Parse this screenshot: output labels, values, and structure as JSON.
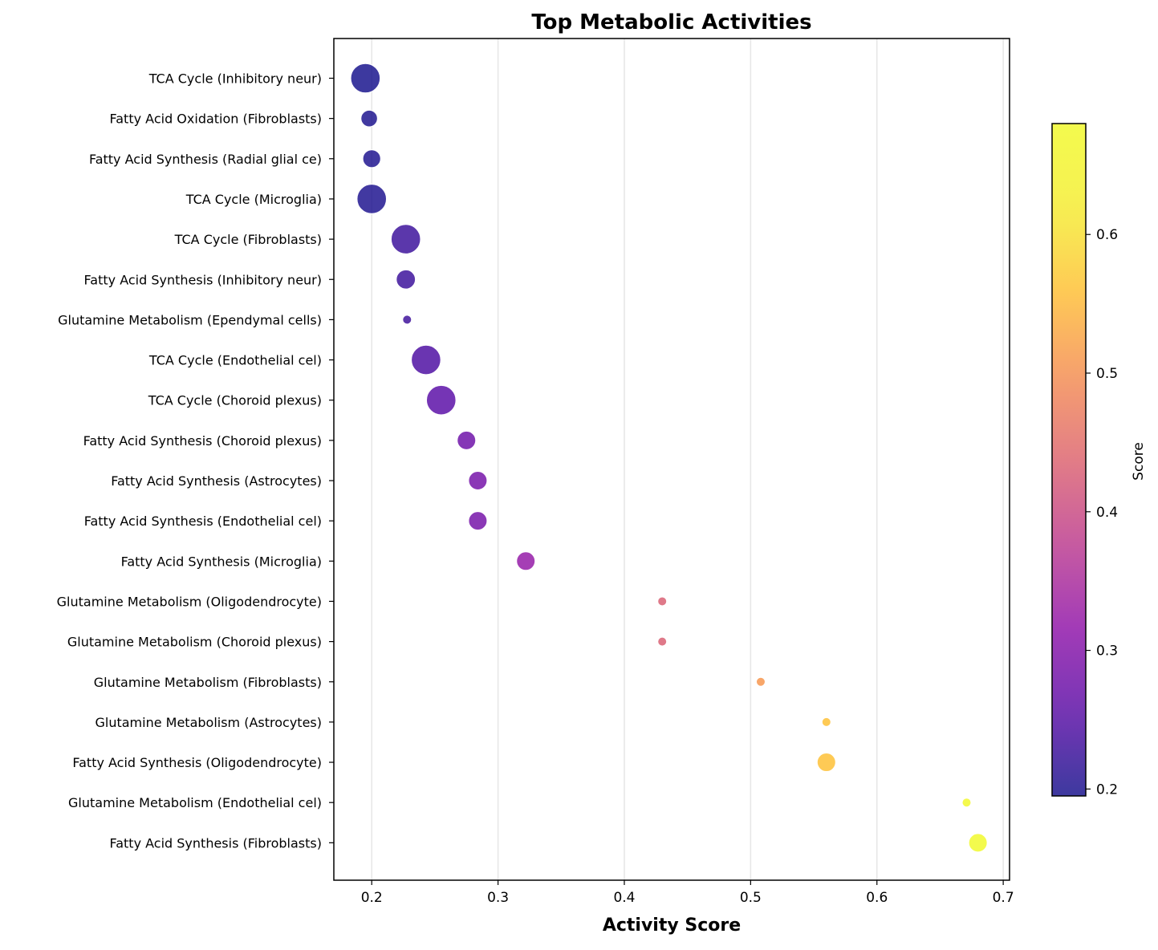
{
  "chart_data": {
    "type": "scatter",
    "title": "Top Metabolic Activities",
    "xlabel": "Activity Score",
    "ylabel": "",
    "xlim": [
      0.17,
      0.705
    ],
    "x_ticks": [
      0.2,
      0.3,
      0.4,
      0.5,
      0.6,
      0.7
    ],
    "x_tick_labels": [
      "0.2",
      "0.3",
      "0.4",
      "0.5",
      "0.6",
      "0.7"
    ],
    "grid": "vertical",
    "colormap": "plasma",
    "colorbar": {
      "label": "Score",
      "range": [
        0.195,
        0.68
      ],
      "ticks": [
        0.2,
        0.3,
        0.4,
        0.5,
        0.6
      ],
      "tick_labels": [
        "0.2",
        "0.3",
        "0.4",
        "0.5",
        "0.6"
      ]
    },
    "points": [
      {
        "label": "TCA Cycle (Inhibitory neur)",
        "x": 0.195,
        "size": 4.6
      },
      {
        "label": "Fatty Acid Oxidation (Fibroblasts)",
        "x": 0.198,
        "size": 2.6
      },
      {
        "label": "Fatty Acid Synthesis (Radial glial ce)",
        "x": 0.2,
        "size": 2.8
      },
      {
        "label": "TCA Cycle (Microglia)",
        "x": 0.2,
        "size": 4.6
      },
      {
        "label": "TCA Cycle (Fibroblasts)",
        "x": 0.227,
        "size": 4.6
      },
      {
        "label": "Fatty Acid Synthesis (Inhibitory neur)",
        "x": 0.227,
        "size": 3.0
      },
      {
        "label": "Glutamine Metabolism (Ependymal cells)",
        "x": 0.228,
        "size": 1.4
      },
      {
        "label": "TCA Cycle (Endothelial cel)",
        "x": 0.243,
        "size": 4.6
      },
      {
        "label": "TCA Cycle (Choroid plexus)",
        "x": 0.255,
        "size": 4.6
      },
      {
        "label": "Fatty Acid Synthesis (Choroid plexus)",
        "x": 0.275,
        "size": 2.9
      },
      {
        "label": "Fatty Acid Synthesis (Astrocytes)",
        "x": 0.284,
        "size": 2.9
      },
      {
        "label": "Fatty Acid Synthesis (Endothelial cel)",
        "x": 0.284,
        "size": 2.9
      },
      {
        "label": "Fatty Acid Synthesis (Microglia)",
        "x": 0.322,
        "size": 2.9
      },
      {
        "label": "Glutamine Metabolism (Oligodendrocyte)",
        "x": 0.43,
        "size": 1.4
      },
      {
        "label": "Glutamine Metabolism (Choroid plexus)",
        "x": 0.43,
        "size": 1.4
      },
      {
        "label": "Glutamine Metabolism (Fibroblasts)",
        "x": 0.508,
        "size": 1.4
      },
      {
        "label": "Glutamine Metabolism (Astrocytes)",
        "x": 0.56,
        "size": 1.4
      },
      {
        "label": "Fatty Acid Synthesis (Oligodendrocyte)",
        "x": 0.56,
        "size": 2.9
      },
      {
        "label": "Glutamine Metabolism (Endothelial cel)",
        "x": 0.671,
        "size": 1.4
      },
      {
        "label": "Fatty Acid Synthesis (Fibroblasts)",
        "x": 0.68,
        "size": 2.9
      }
    ]
  }
}
